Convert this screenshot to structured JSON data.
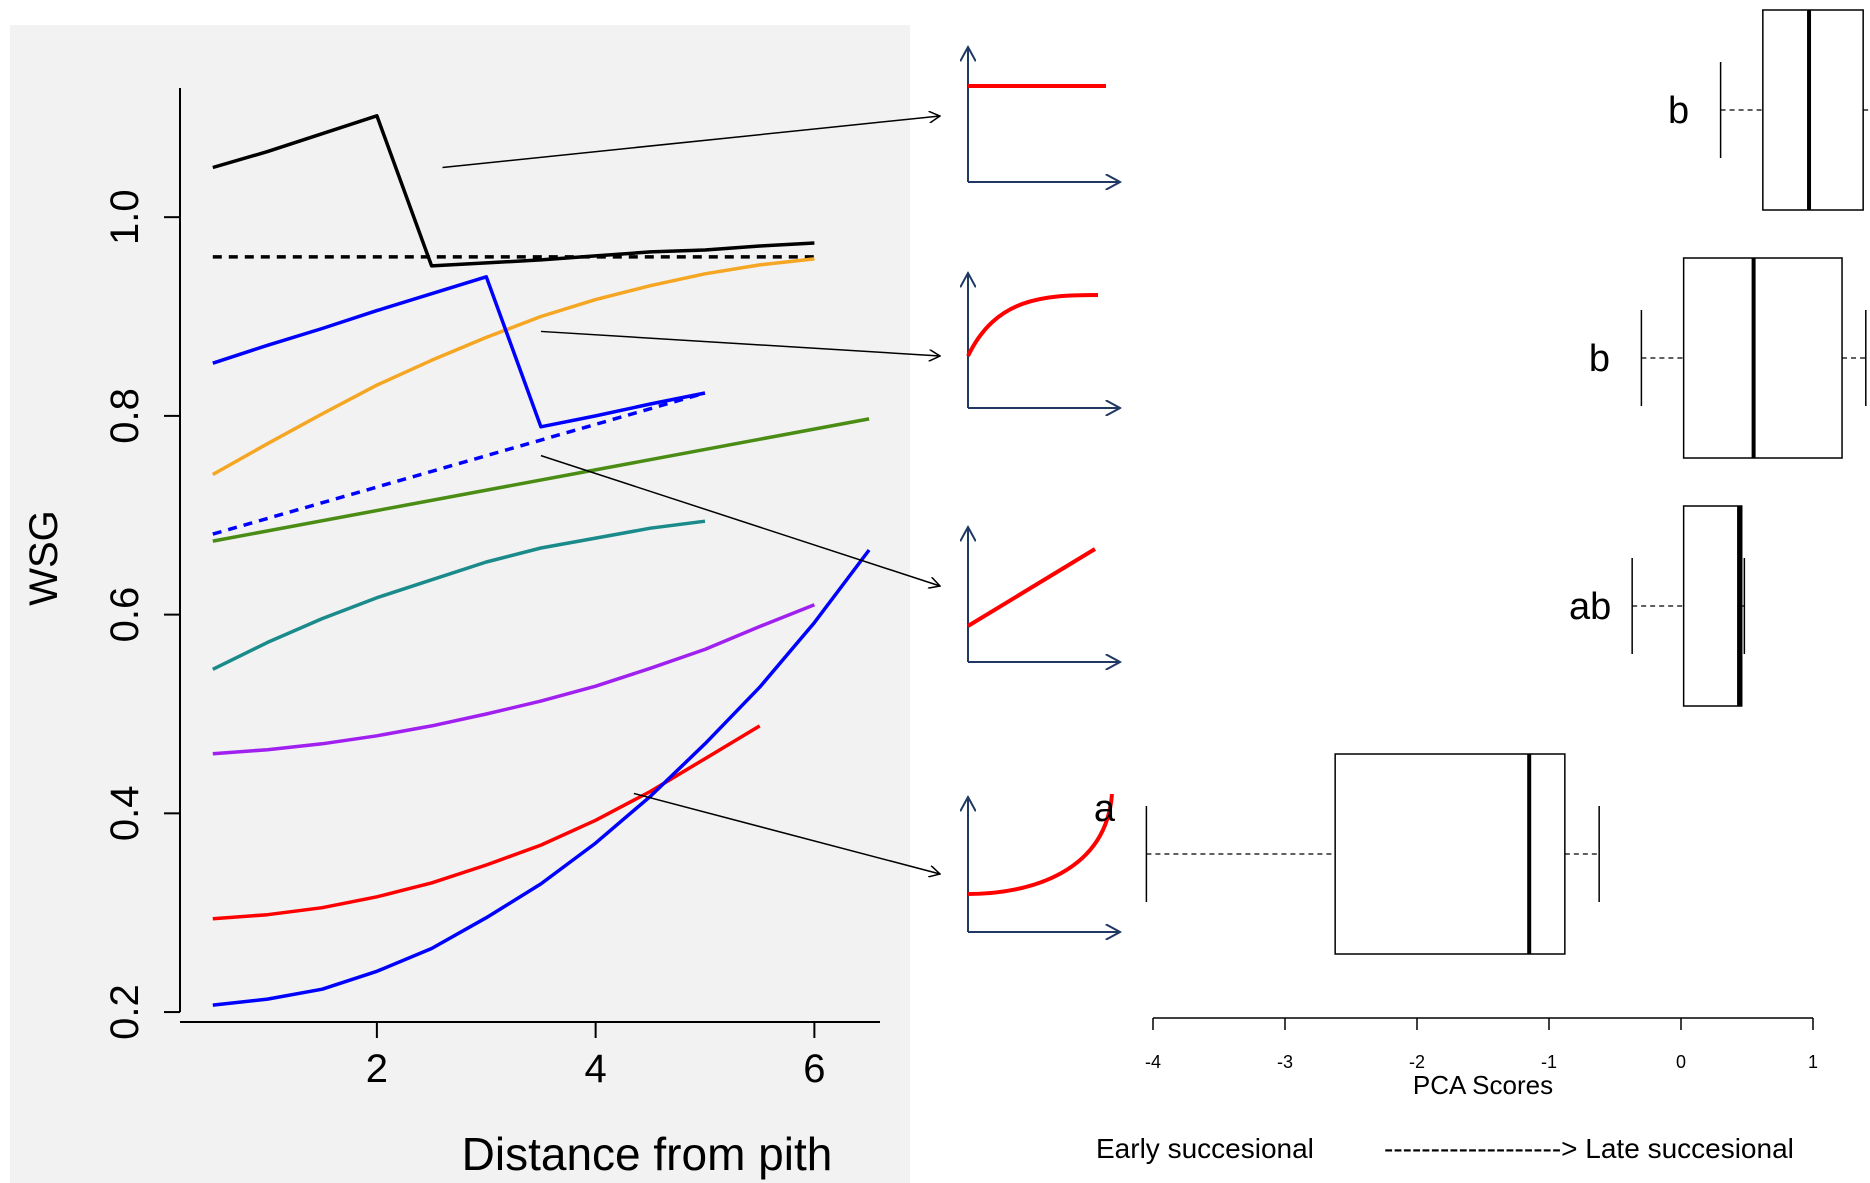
{
  "chart_data": [
    {
      "type": "line",
      "xlabel": "Distance from pith",
      "ylabel": "WSG",
      "xlim": [
        0.2,
        6.6
      ],
      "ylim": [
        0.19,
        1.13
      ],
      "xticks": [
        2,
        4,
        6
      ],
      "yticks": [
        0.2,
        0.4,
        0.6,
        0.8,
        1.0
      ],
      "ytick_labels": [
        "0.2",
        "0.4",
        "0.6",
        "0.8",
        "1.0"
      ],
      "background": "#f2f2f2",
      "series": [
        {
          "color": "#000000",
          "style": "solid",
          "x": [
            0.5,
            1,
            1.5,
            2,
            2.5,
            3,
            3.5,
            4,
            4.5,
            5,
            5.5,
            6
          ],
          "y": [
            1.05,
            1.066,
            1.084,
            1.102,
            0.951,
            0.954,
            0.957,
            0.961,
            0.965,
            0.967,
            0.971,
            0.974
          ]
        },
        {
          "color": "#000000",
          "style": "dashed",
          "x": [
            0.5,
            6
          ],
          "y": [
            0.96,
            0.96
          ]
        },
        {
          "color": "#f5a623",
          "style": "solid",
          "x": [
            0.5,
            1,
            1.5,
            2,
            2.5,
            3,
            3.5,
            4,
            4.5,
            5,
            5.5,
            6
          ],
          "y": [
            0.741,
            0.772,
            0.802,
            0.831,
            0.856,
            0.879,
            0.9,
            0.917,
            0.931,
            0.943,
            0.952,
            0.958
          ]
        },
        {
          "color": "#0000ff",
          "style": "solid",
          "x": [
            0.5,
            1,
            1.5,
            2,
            2.5,
            3,
            3.5,
            4,
            4.5,
            5
          ],
          "y": [
            0.853,
            0.871,
            0.888,
            0.906,
            0.923,
            0.94,
            0.789,
            0.8,
            0.812,
            0.823
          ]
        },
        {
          "color": "#0000ff",
          "style": "dashed",
          "x": [
            0.5,
            5
          ],
          "y": [
            0.681,
            0.823
          ]
        },
        {
          "color": "#4a8c14",
          "style": "solid",
          "x": [
            0.5,
            6.5
          ],
          "y": [
            0.674,
            0.797
          ]
        },
        {
          "color": "#1a8a8a",
          "style": "solid",
          "x": [
            0.5,
            1,
            1.5,
            2,
            2.5,
            3,
            3.5,
            4,
            4.5,
            5
          ],
          "y": [
            0.545,
            0.572,
            0.596,
            0.617,
            0.635,
            0.653,
            0.667,
            0.677,
            0.687,
            0.694
          ]
        },
        {
          "color": "#a020f0",
          "style": "solid",
          "x": [
            0.5,
            1,
            1.5,
            2,
            2.5,
            3,
            3.5,
            4,
            4.5,
            5,
            5.5,
            6
          ],
          "y": [
            0.46,
            0.464,
            0.47,
            0.478,
            0.488,
            0.5,
            0.513,
            0.528,
            0.546,
            0.565,
            0.588,
            0.61
          ]
        },
        {
          "color": "#ff0000",
          "style": "solid",
          "x": [
            0.5,
            1,
            1.5,
            2,
            2.5,
            3,
            3.5,
            4,
            4.5,
            5,
            5.5
          ],
          "y": [
            0.294,
            0.298,
            0.305,
            0.316,
            0.33,
            0.348,
            0.368,
            0.393,
            0.422,
            0.455,
            0.488
          ]
        },
        {
          "color": "#0000ff",
          "style": "solid",
          "x": [
            0.5,
            1,
            1.5,
            2,
            2.5,
            3,
            3.5,
            4,
            4.5,
            5,
            5.5,
            6,
            6.5
          ],
          "y": [
            0.207,
            0.213,
            0.223,
            0.241,
            0.264,
            0.295,
            0.329,
            0.37,
            0.417,
            0.47,
            0.527,
            0.592,
            0.665
          ]
        }
      ],
      "schematics": [
        {
          "shape": "constant"
        },
        {
          "shape": "saturating"
        },
        {
          "shape": "linear"
        },
        {
          "shape": "exponential"
        }
      ]
    },
    {
      "type": "box",
      "xlabel": "PCA Scores",
      "xlim": [
        -4.2,
        1.4
      ],
      "xticks": [
        -4,
        -3,
        -2,
        -1,
        0,
        1
      ],
      "xtick_labels": [
        "-4",
        "-3",
        "-2",
        "-1",
        "0",
        "1"
      ],
      "groups": [
        {
          "label": "b",
          "min": 0.3,
          "q1": 0.62,
          "median": 0.97,
          "q3": 1.38,
          "max": 1.45
        },
        {
          "label": "b",
          "min": -0.3,
          "q1": 0.02,
          "median": 0.55,
          "q3": 1.22,
          "max": 1.4
        },
        {
          "label": "ab",
          "min": -0.37,
          "q1": 0.02,
          "median": 0.44,
          "q3": 0.46,
          "max": 0.48
        },
        {
          "label": "a",
          "min": -4.05,
          "q1": -2.62,
          "median": -1.15,
          "q3": -0.88,
          "max": -0.62
        }
      ],
      "footer": {
        "left": "Early succesional",
        "right": "-------------------> Late succesional"
      }
    }
  ]
}
